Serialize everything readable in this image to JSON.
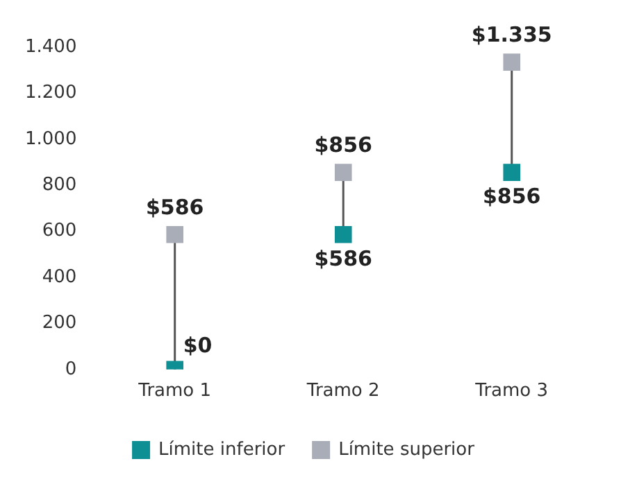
{
  "chart_data": {
    "type": "scatter",
    "categories": [
      "Tramo 1",
      "Tramo 2",
      "Tramo 3"
    ],
    "series": [
      {
        "name": "Límite inferior",
        "color": "#0e8f94",
        "values": [
          0,
          586,
          856
        ],
        "value_labels": [
          "$0",
          "$586",
          "$856"
        ]
      },
      {
        "name": "Límite superior",
        "color": "#a9adb8",
        "values": [
          586,
          856,
          1335
        ],
        "value_labels": [
          "$586",
          "$856",
          "$1.335"
        ]
      }
    ],
    "ylim": [
      0,
      1400
    ],
    "yticks": [
      0,
      200,
      400,
      600,
      800,
      {
        "value": 1000,
        "label": "1.000"
      },
      {
        "value": 1200,
        "label": "1.200"
      },
      {
        "value": 1400,
        "label": "1.400"
      }
    ],
    "marker": "square",
    "grid": false,
    "legend": "bottom"
  }
}
